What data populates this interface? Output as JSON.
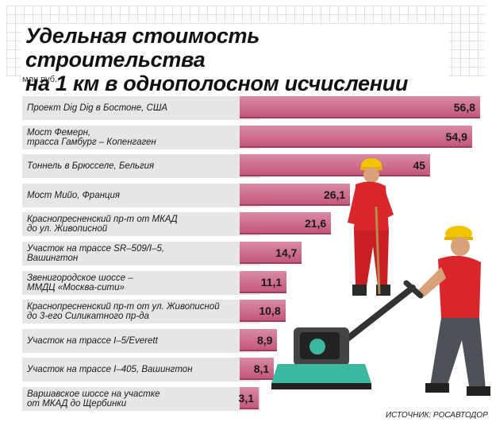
{
  "title_line1": "Удельная стоимость строительства",
  "title_line2": "на 1 км в однополосном исчислении",
  "unit": "млн руб.",
  "source": "ИСТОЧНИК: РОСАВТОДОР",
  "chart_data": {
    "type": "bar",
    "orientation": "horizontal",
    "title": "Удельная стоимость строительства на 1 км в однополосном исчислении",
    "ylabel": "млн руб.",
    "categories": [
      "Проект Dig Dig в Бостоне, США",
      "Мост Фемерн, трасса Гамбург – Копенгаген",
      "Тоннель в Брюсселе, Бельгия",
      "Мост Мийо, Франция",
      "Краснопресненский пр-т от МКАД до ул. Живописной",
      "Участок на трассе SR–509/I–5, Вашингтон",
      "Звенигородское шоссе – ММДЦ «Москва-сити»",
      "Краснопресненский пр-т от ул. Живописной до 3-его Силикатного пр-да",
      "Участок на трассе I–5/Everett",
      "Участок на трассе I–405, Вашингтон",
      "Варшавское шоссе на участке от МКАД до Щербинки"
    ],
    "label_lines": [
      [
        "Проект Dig Dig в Бостоне, США"
      ],
      [
        "Мост Фемерн,",
        "трасса Гамбург – Копенгаген"
      ],
      [
        "Тоннель в Брюсселе, Бельгия"
      ],
      [
        "Мост Мийо, Франция"
      ],
      [
        "Краснопресненский пр-т от МКАД",
        "до ул. Живописной"
      ],
      [
        "Участок на трассе SR–509/I–5,",
        "Вашингтон"
      ],
      [
        "Звенигородское шоссе –",
        "ММДЦ «Москва-сити»"
      ],
      [
        "Краснопресненский пр-т от ул. Живописной",
        "до 3-его Силикатного пр-да"
      ],
      [
        "Участок на трассе I–5/Everett"
      ],
      [
        "Участок на трассе I–405, Вашингтон"
      ],
      [
        "Варшавское шоссе на участке",
        "от МКАД до Щербинки"
      ]
    ],
    "values": [
      56.8,
      54.9,
      45,
      26.1,
      21.6,
      14.7,
      11.1,
      10.8,
      8.9,
      8.1,
      3.1
    ],
    "value_labels": [
      "56,8",
      "54,9",
      "45",
      "26,1",
      "21,6",
      "14,7",
      "11,1",
      "10,8",
      "8,9",
      "8,1",
      "3,1"
    ],
    "xlim": [
      0,
      56.8
    ],
    "grid": false,
    "legend": "none",
    "bar_color": "#c4587c"
  }
}
